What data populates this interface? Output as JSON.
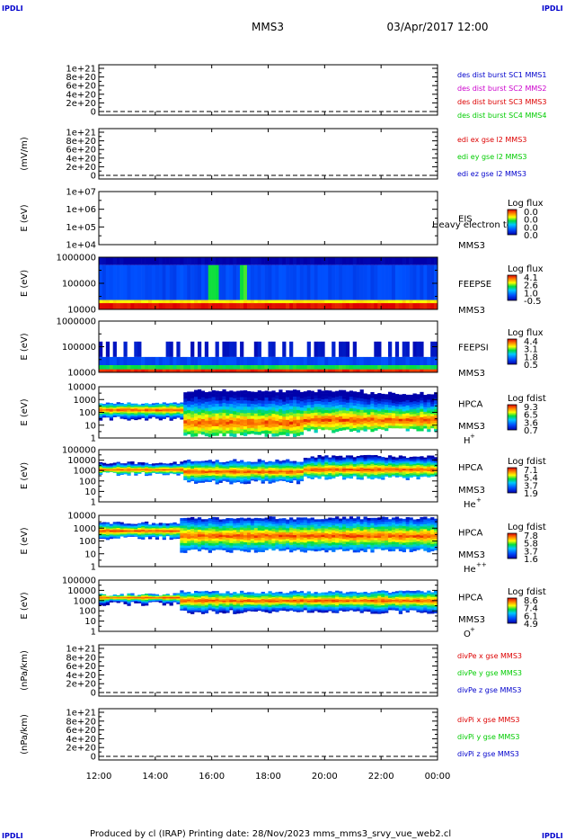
{
  "corner_labels": [
    "IPDLI",
    "IPDLI",
    "IPDLI",
    "IPDLI"
  ],
  "header": {
    "title": "MMS3",
    "datetime": "03/Apr/2017 12:00"
  },
  "footer": {
    "text": "Produced by cl (IRAP)   Printing date: 28/Nov/2023   mms_mms3_srvy_vue_web2.cl"
  },
  "colors": {
    "axis": "#000000",
    "red": "#dd0000",
    "magenta": "#cc00cc",
    "green": "#00cc00",
    "blue": "#0000cc"
  },
  "chart_data": {
    "type": "heatmap",
    "time_axis": {
      "ticks": [
        "12:00",
        "14:00",
        "16:00",
        "18:00",
        "20:00",
        "22:00",
        "00:00"
      ],
      "range": [
        "12:00",
        "00:00"
      ]
    },
    "panels": [
      {
        "type": "line",
        "ylabel": "",
        "yticks": [
          "1e+21",
          "8e+20",
          "6e+20",
          "4e+20",
          "2e+20",
          "0"
        ],
        "dashed_zero": true,
        "legend": [
          {
            "text": "des dist burst SC1 MMS1",
            "color": "#0000cc"
          },
          {
            "text": "des dist burst SC2 MMS2",
            "color": "#cc00cc"
          },
          {
            "text": "des dist burst SC3 MMS3",
            "color": "#dd0000"
          },
          {
            "text": "des dist burst SC4 MMS4",
            "color": "#00cc00"
          }
        ]
      },
      {
        "type": "line",
        "ylabel": "(mV/m)",
        "yticks": [
          "1e+21",
          "8e+20",
          "6e+20",
          "4e+20",
          "2e+20",
          "0"
        ],
        "dashed_zero": true,
        "legend": [
          {
            "text": "edi ex gse l2 MMS3",
            "color": "#dd0000"
          },
          {
            "text": "edi ey gse l2 MMS3",
            "color": "#00cc00"
          },
          {
            "text": "edi ez gse l2 MMS3",
            "color": "#0000cc"
          }
        ]
      },
      {
        "type": "heatmap",
        "ylabel": "E (eV)",
        "yticks": [
          "1e+07",
          "1e+06",
          "1e+05",
          "1e+04"
        ],
        "instrument": [
          "EIS",
          "MMS3"
        ],
        "overlay_text": "Heavy electron to",
        "colorbar_title": "Log flux",
        "colorbar_ticks": [
          "0.0",
          "0.0",
          "0.0",
          "0.0"
        ],
        "empty": true
      },
      {
        "type": "heatmap",
        "ylabel": "E (eV)",
        "yticks": [
          "1000000",
          "100000",
          "10000"
        ],
        "instrument": [
          "FEEPSE",
          "MMS3"
        ],
        "colorbar_title": "Log flux",
        "colorbar_ticks": [
          "4.1",
          "2.6",
          "1.0",
          "-0.5"
        ],
        "profile": [
          {
            "band": [
              0.0,
              0.12
            ],
            "level": 0.98
          },
          {
            "band": [
              0.12,
              0.18
            ],
            "level": 0.72
          },
          {
            "band": [
              0.18,
              0.85
            ],
            "level": 0.18
          },
          {
            "band": [
              0.85,
              1.0
            ],
            "level": 0.0
          }
        ],
        "features": [
          {
            "time": 0.34,
            "level": 0.55
          },
          {
            "time": 0.43,
            "level": 0.58
          }
        ]
      },
      {
        "type": "heatmap",
        "ylabel": "E (eV)",
        "yticks": [
          "1000000",
          "100000",
          "10000"
        ],
        "instrument": [
          "FEEPSI",
          "MMS3"
        ],
        "colorbar_title": "Log flux",
        "colorbar_ticks": [
          "4.4",
          "3.1",
          "1.8",
          "0.5"
        ],
        "profile": [
          {
            "band": [
              0.0,
              0.06
            ],
            "level": 0.95
          },
          {
            "band": [
              0.06,
              0.14
            ],
            "level": 0.55
          },
          {
            "band": [
              0.14,
              0.3
            ],
            "level": 0.18
          },
          {
            "band": [
              0.3,
              0.6
            ],
            "level": 0.06
          }
        ],
        "sparse": true
      },
      {
        "type": "heatmap",
        "ylabel": "E (eV)",
        "yticks": [
          "10000",
          "1000",
          "100",
          "10",
          "1"
        ],
        "instrument": [
          "HPCA",
          "MMS3"
        ],
        "species": "H",
        "species_charge": "+",
        "colorbar_title": "Log fdist",
        "colorbar_ticks": [
          "9.3",
          "6.5",
          "3.6",
          "0.7"
        ],
        "segments": [
          {
            "t": [
              0.0,
              0.25
            ],
            "low": 0.42,
            "high": 0.7,
            "peak": 0.55
          },
          {
            "t": [
              0.25,
              0.6
            ],
            "low": 0.1,
            "high": 0.95,
            "peak": 0.3
          },
          {
            "t": [
              0.6,
              0.78
            ],
            "low": 0.18,
            "high": 0.95,
            "peak": 0.35
          },
          {
            "t": [
              0.78,
              1.0
            ],
            "low": 0.2,
            "high": 0.9,
            "peak": 0.35
          }
        ]
      },
      {
        "type": "heatmap",
        "ylabel": "E (eV)",
        "yticks": [
          "100000",
          "10000",
          "1000",
          "100",
          "10",
          "1"
        ],
        "instrument": [
          "HPCA",
          "MMS3"
        ],
        "species": "He",
        "species_charge": "+",
        "colorbar_title": "Log fdist",
        "colorbar_ticks": [
          "7.1",
          "5.4",
          "3.7",
          "1.9"
        ],
        "segments": [
          {
            "t": [
              0.0,
              0.25
            ],
            "low": 0.58,
            "high": 0.78,
            "peak": 0.62
          },
          {
            "t": [
              0.25,
              0.6
            ],
            "low": 0.42,
            "high": 0.82,
            "peak": 0.58
          },
          {
            "t": [
              0.6,
              1.0
            ],
            "low": 0.5,
            "high": 0.9,
            "peak": 0.62
          }
        ]
      },
      {
        "type": "heatmap",
        "ylabel": "E (eV)",
        "yticks": [
          "10000",
          "1000",
          "100",
          "10",
          "1"
        ],
        "instrument": [
          "HPCA",
          "MMS3"
        ],
        "species": "He",
        "species_charge": "++",
        "colorbar_title": "Log fdist",
        "colorbar_ticks": [
          "7.8",
          "5.8",
          "3.7",
          "1.6"
        ],
        "segments": [
          {
            "t": [
              0.0,
              0.24
            ],
            "low": 0.6,
            "high": 0.88,
            "peak": 0.7
          },
          {
            "t": [
              0.24,
              1.0
            ],
            "low": 0.35,
            "high": 0.98,
            "peak": 0.6
          }
        ]
      },
      {
        "type": "heatmap",
        "ylabel": "E (eV)",
        "yticks": [
          "100000",
          "10000",
          "1000",
          "100",
          "10",
          "1"
        ],
        "instrument": [
          "HPCA",
          "MMS3"
        ],
        "species": "O",
        "species_charge": "+",
        "colorbar_title": "Log fdist",
        "colorbar_ticks": [
          "8.6",
          "7.4",
          "6.1",
          "4.9"
        ],
        "segments": [
          {
            "t": [
              0.0,
              0.24
            ],
            "low": 0.58,
            "high": 0.75,
            "peak": 0.66
          },
          {
            "t": [
              0.24,
              1.0
            ],
            "low": 0.42,
            "high": 0.8,
            "peak": 0.6
          }
        ]
      },
      {
        "type": "line",
        "ylabel": "(nPa/km)",
        "yticks": [
          "1e+21",
          "8e+20",
          "6e+20",
          "4e+20",
          "2e+20",
          "0"
        ],
        "dashed_zero": true,
        "legend": [
          {
            "text": "divPe x gse MMS3",
            "color": "#dd0000"
          },
          {
            "text": "divPe y gse MMS3",
            "color": "#00cc00"
          },
          {
            "text": "divPe z gse MMS3",
            "color": "#0000cc"
          }
        ]
      },
      {
        "type": "line",
        "ylabel": "(nPa/km)",
        "yticks": [
          "1e+21",
          "8e+20",
          "6e+20",
          "4e+20",
          "2e+20",
          "0"
        ],
        "dashed_zero": true,
        "legend": [
          {
            "text": "divPi x gse MMS3",
            "color": "#dd0000"
          },
          {
            "text": "divPi y gse MMS3",
            "color": "#00cc00"
          },
          {
            "text": "divPi z gse MMS3",
            "color": "#0000cc"
          }
        ]
      }
    ]
  }
}
